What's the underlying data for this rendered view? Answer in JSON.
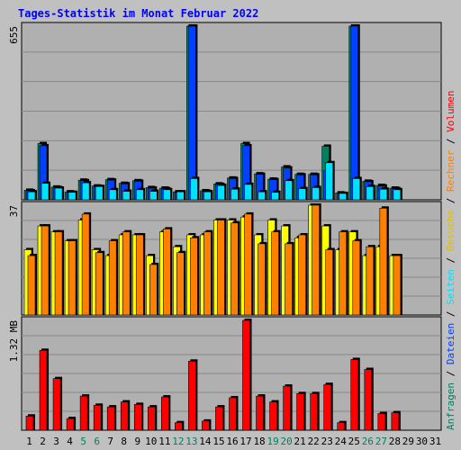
{
  "title": "Tages-Statistik im Monat Februar 2022",
  "colors": {
    "background": "#c0c0c0",
    "plot": "#b0b0b0",
    "title": "#0000ff",
    "anfragen": "#008060",
    "dateien": "#0040ff",
    "seiten": "#00e0ff",
    "besuche": "#ffff00",
    "rechner": "#ff8000",
    "volumen": "#ff0000",
    "weekend_day": "#008060",
    "weekday": "#000000"
  },
  "right_legend": [
    {
      "text": "Anfragen",
      "color": "#008060"
    },
    {
      "text": " / ",
      "color": "#000000"
    },
    {
      "text": "Dateien",
      "color": "#0040ff"
    },
    {
      "text": " / ",
      "color": "#000000"
    },
    {
      "text": "Seiten",
      "color": "#00e0ff"
    },
    {
      "text": " / ",
      "color": "#000000"
    },
    {
      "text": "Besuche",
      "color": "#e0c000"
    },
    {
      "text": " / ",
      "color": "#000000"
    },
    {
      "text": "Rechner",
      "color": "#ff8000"
    },
    {
      "text": " / ",
      "color": "#000000"
    },
    {
      "text": "Volumen",
      "color": "#ff0000"
    }
  ],
  "chart_data": [
    {
      "type": "bar",
      "panel": "anfragen-dateien-seiten",
      "ymax_label": "655",
      "ylim": [
        0,
        655
      ],
      "categories": [
        "1",
        "2",
        "3",
        "4",
        "5",
        "6",
        "7",
        "8",
        "9",
        "10",
        "11",
        "12",
        "13",
        "14",
        "15",
        "16",
        "17",
        "18",
        "19",
        "20",
        "21",
        "22",
        "23",
        "24",
        "25",
        "26",
        "27",
        "28",
        "29",
        "30",
        "31"
      ],
      "series": [
        {
          "name": "Anfragen",
          "values": [
            36,
            212,
            48,
            30,
            74,
            52,
            76,
            62,
            72,
            46,
            44,
            30,
            655,
            34,
            60,
            82,
            212,
            98,
            78,
            124,
            96,
            96,
            202,
            26,
            655,
            70,
            54,
            44,
            null,
            null,
            null
          ]
        },
        {
          "name": "Dateien",
          "values": [
            34,
            204,
            46,
            28,
            72,
            50,
            74,
            60,
            70,
            44,
            42,
            28,
            655,
            32,
            58,
            80,
            204,
            96,
            76,
            120,
            94,
            94,
            110,
            24,
            655,
            68,
            52,
            42,
            null,
            null,
            null
          ]
        },
        {
          "name": "Seiten",
          "values": [
            30,
            62,
            44,
            28,
            64,
            50,
            38,
            32,
            38,
            32,
            38,
            30,
            80,
            30,
            54,
            40,
            58,
            30,
            28,
            72,
            42,
            46,
            140,
            24,
            80,
            50,
            40,
            38,
            null,
            null,
            null
          ]
        }
      ]
    },
    {
      "type": "bar",
      "panel": "besuche-rechner",
      "ymax_label": "37",
      "ylim": [
        0,
        37
      ],
      "categories": [
        "1",
        "2",
        "3",
        "4",
        "5",
        "6",
        "7",
        "8",
        "9",
        "10",
        "11",
        "12",
        "13",
        "14",
        "15",
        "16",
        "17",
        "18",
        "19",
        "20",
        "21",
        "22",
        "23",
        "24",
        "25",
        "26",
        "27",
        "28",
        "29",
        "30",
        "31"
      ],
      "series": [
        {
          "name": "Besuche",
          "values": [
            22,
            30,
            28,
            25,
            32,
            22,
            20,
            27,
            27,
            20,
            28,
            23,
            27,
            27,
            32,
            32,
            33,
            27,
            32,
            30,
            26,
            37,
            30,
            22,
            28,
            20,
            23,
            20,
            null,
            null,
            null
          ]
        },
        {
          "name": "Rechner",
          "values": [
            20,
            30,
            28,
            25,
            34,
            21,
            25,
            28,
            27,
            17,
            29,
            21,
            26,
            28,
            32,
            31,
            34,
            24,
            28,
            24,
            27,
            37,
            22,
            28,
            25,
            23,
            36,
            20,
            null,
            null,
            null
          ]
        }
      ]
    },
    {
      "type": "bar",
      "panel": "volumen",
      "ymax_label": "1.32 MB",
      "ylim": [
        0,
        1.32
      ],
      "categories": [
        "1",
        "2",
        "3",
        "4",
        "5",
        "6",
        "7",
        "8",
        "9",
        "10",
        "11",
        "12",
        "13",
        "14",
        "15",
        "16",
        "17",
        "18",
        "19",
        "20",
        "21",
        "22",
        "23",
        "24",
        "25",
        "26",
        "27",
        "28",
        "29",
        "30",
        "31"
      ],
      "series": [
        {
          "name": "Volumen",
          "values": [
            0.17,
            0.96,
            0.62,
            0.14,
            0.41,
            0.3,
            0.28,
            0.34,
            0.31,
            0.28,
            0.4,
            0.09,
            0.83,
            0.11,
            0.28,
            0.39,
            1.32,
            0.41,
            0.34,
            0.53,
            0.44,
            0.44,
            0.55,
            0.09,
            0.85,
            0.73,
            0.2,
            0.21,
            null,
            null,
            null
          ]
        }
      ]
    }
  ],
  "weekend_days": [
    5,
    6,
    12,
    13,
    19,
    20,
    26,
    27
  ]
}
